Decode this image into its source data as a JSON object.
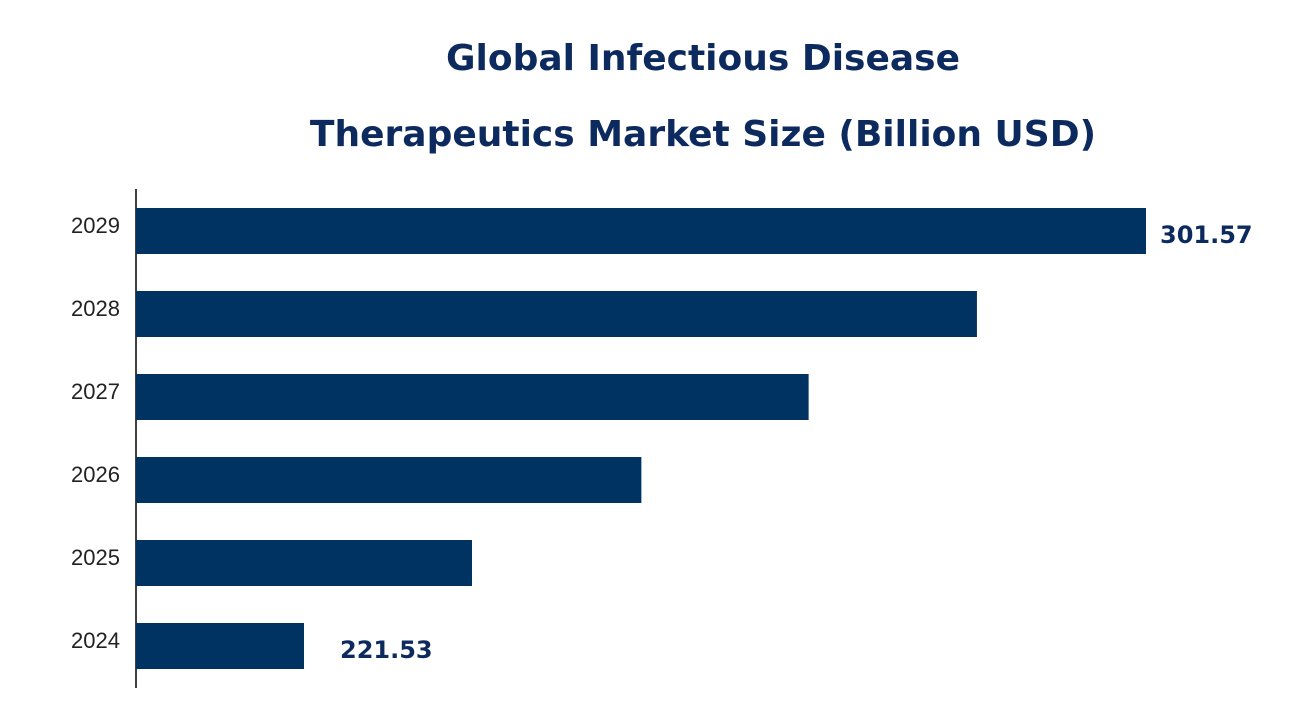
{
  "chart_data": {
    "type": "barh",
    "title": [
      "Global Infectious Disease",
      "Therapeutics Market Size (Billion USD)"
    ],
    "categories": [
      "2024",
      "2025",
      "2026",
      "2027",
      "2028",
      "2029"
    ],
    "values": [
      221.53,
      237.5,
      253.6,
      269.5,
      285.5,
      301.57
    ],
    "value_labels": [
      "221.53",
      null,
      null,
      null,
      null,
      "301.57"
    ],
    "color": "#003361",
    "xlim": [
      205.56,
      301.57
    ]
  }
}
